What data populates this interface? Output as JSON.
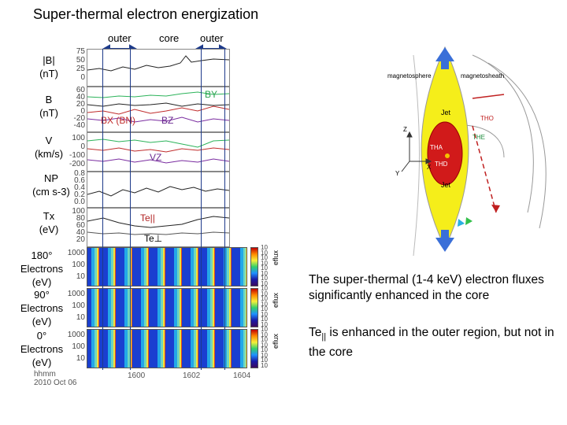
{
  "title": "Super-thermal electron energization",
  "regions": {
    "outer_left": "outer",
    "core": "core",
    "outer_right": "outer"
  },
  "panels": {
    "b_mag": {
      "label_line1": "|B|",
      "label_line2": "(nT)",
      "ticks": [
        "75",
        "50",
        "25",
        "0"
      ]
    },
    "b_comp": {
      "label_line1": "B",
      "label_line2": "(nT)",
      "ticks": [
        "60",
        "40",
        "20",
        "0",
        "-20",
        "-40"
      ],
      "annot_by": "BY",
      "annot_bx": "BX (BN)",
      "annot_bz": "BZ"
    },
    "velocity": {
      "label_line1": "V",
      "label_line2": "(km/s)",
      "ticks": [
        "100",
        "0",
        "-100",
        "-200"
      ],
      "annot_vz": "VZ"
    },
    "density": {
      "label_line1": "NP",
      "label_line2": "(cm s-3)",
      "ticks": [
        "0.8",
        "0.6",
        "0.4",
        "0.2",
        "0.0"
      ]
    },
    "temp": {
      "label_line1": "Tx",
      "label_line2": "(eV)",
      "ticks": [
        "100",
        "80",
        "60",
        "40",
        "20"
      ],
      "annot_par": "Te||",
      "annot_perp": "Te⊥"
    },
    "spec180": {
      "label_line1": "180°",
      "label_line2": "Electrons",
      "label_line3": "(eV)",
      "ticks": [
        "1000",
        "100",
        "10"
      ],
      "cbar": "eflux"
    },
    "spec90": {
      "label_line1": "90°",
      "label_line2": "Electrons",
      "label_line3": "(eV)",
      "ticks": [
        "1000",
        "100",
        "10"
      ],
      "cbar": "eflux"
    },
    "spec0": {
      "label_line1": "0°",
      "label_line2": "Electrons",
      "label_line3": "(eV)",
      "ticks": [
        "1000",
        "100",
        "10"
      ],
      "cbar": "eflux"
    }
  },
  "xaxis": {
    "unit": "hhmm",
    "date": "2010 Oct 06",
    "ticks": [
      "1600",
      "1602",
      "1604"
    ]
  },
  "cbar_ticks": [
    "10",
    "10",
    "10",
    "10",
    "10",
    "10",
    "10",
    "10"
  ],
  "diagram": {
    "magnetosphere": "magnetosphere",
    "magnetosheath": "magnetosheath",
    "tho": "THO",
    "the": "THE",
    "tha": "THA",
    "thd": "THD",
    "jet_top": "Jet",
    "jet_bottom": "Jet",
    "axis_z": "Z",
    "axis_x": "X",
    "axis_y": "Y"
  },
  "notes": {
    "note1": "The super-thermal (1-4 keV) electron fluxes significantly enhanced in the core",
    "note2_pre": "Te",
    "note2_sub": "||",
    "note2_post": " is enhanced in the outer region, but not in the core"
  }
}
